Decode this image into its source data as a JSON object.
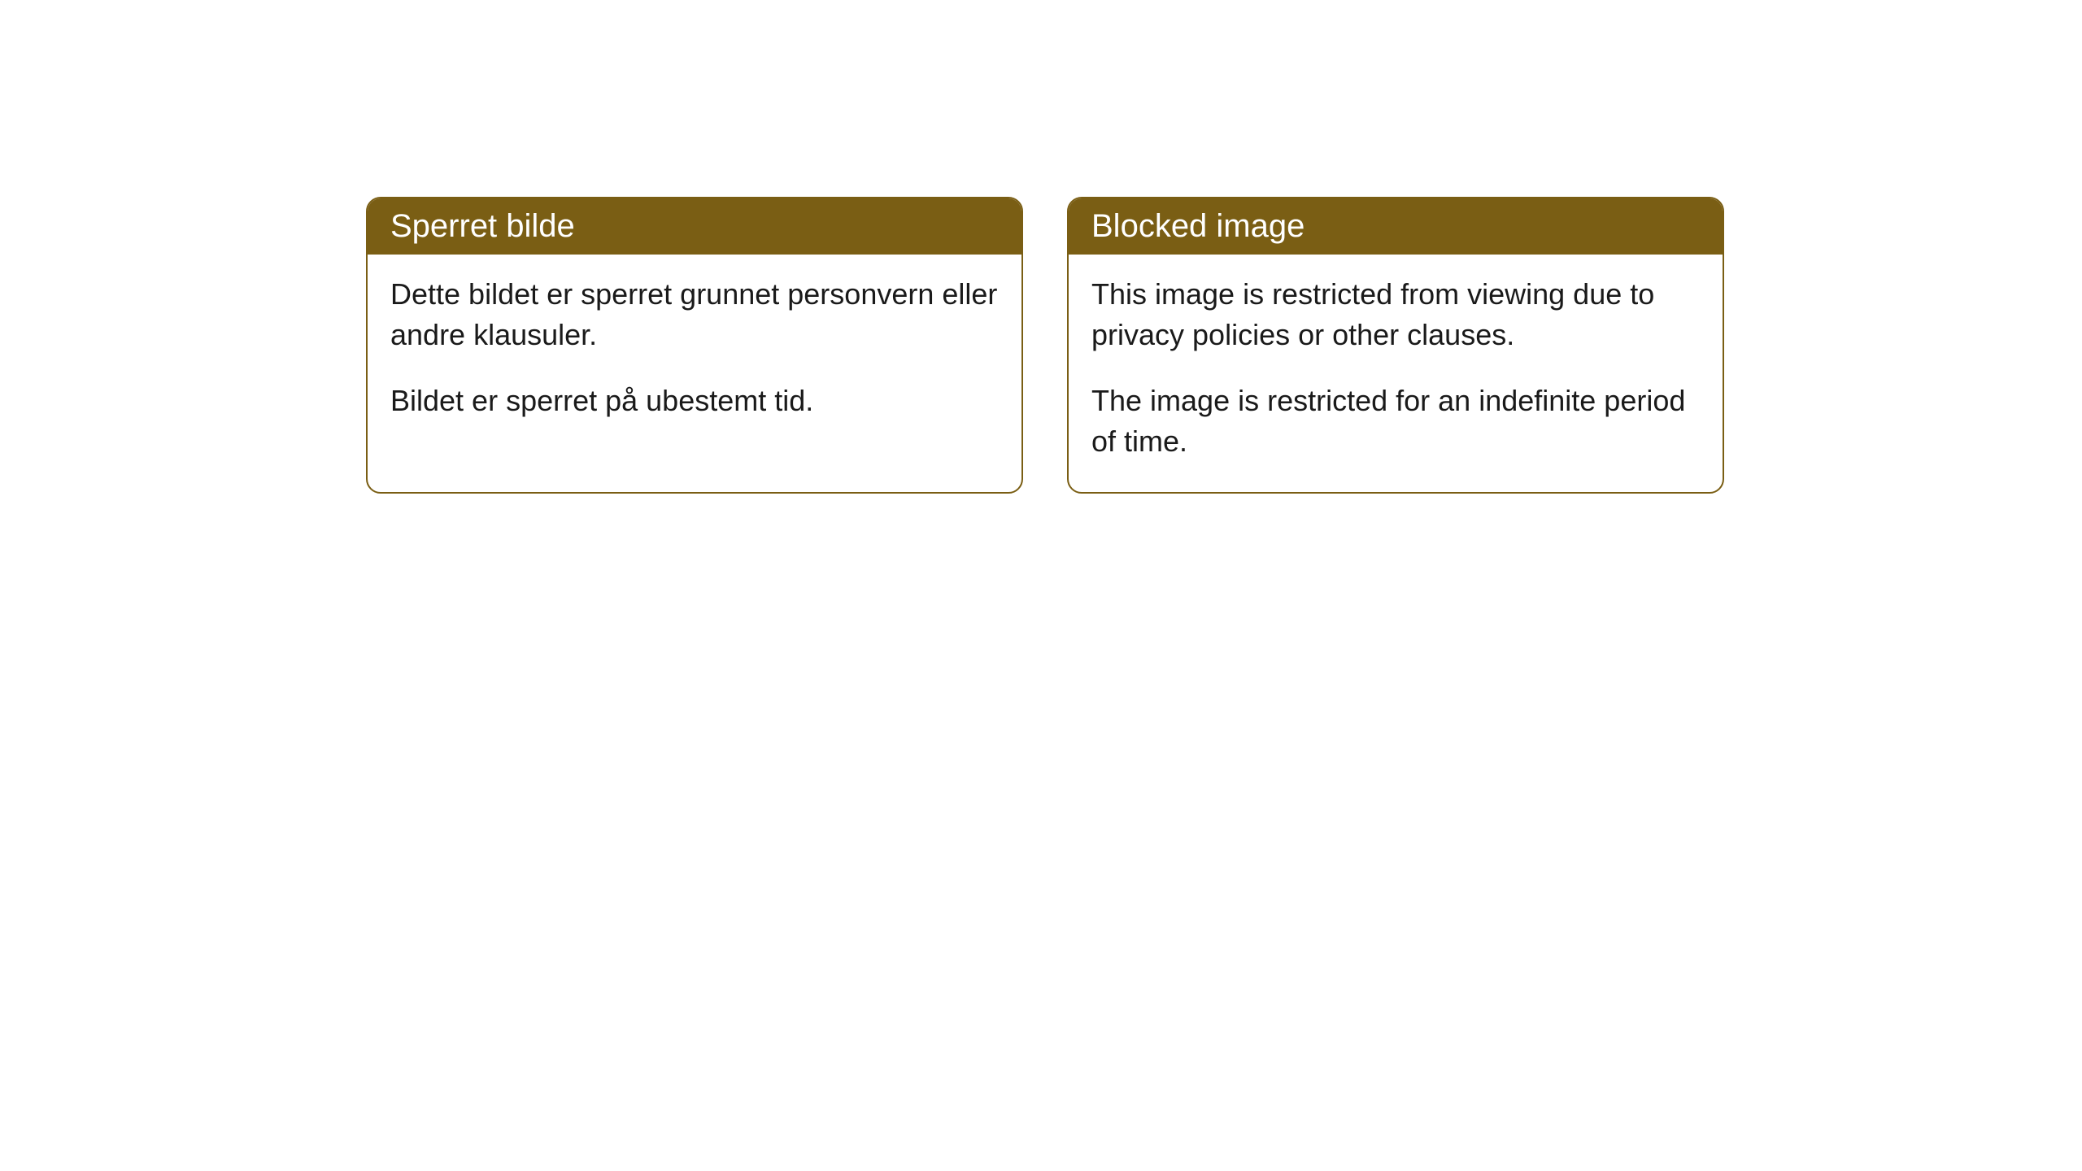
{
  "cards": {
    "left": {
      "title": "Sperret bilde",
      "paragraph1": "Dette bildet er sperret grunnet personvern eller andre klausuler.",
      "paragraph2": "Bildet er sperret på ubestemt tid."
    },
    "right": {
      "title": "Blocked image",
      "paragraph1": "This image is restricted from viewing due to privacy policies or other clauses.",
      "paragraph2": "The image is restricted for an indefinite period of time."
    }
  },
  "style": {
    "header_bg": "#7a5e14",
    "header_color": "#ffffff",
    "border_color": "#7a5e14",
    "body_bg": "#ffffff",
    "text_color": "#1a1a1a",
    "border_radius": 18,
    "header_fontsize": 40,
    "body_fontsize": 36
  }
}
